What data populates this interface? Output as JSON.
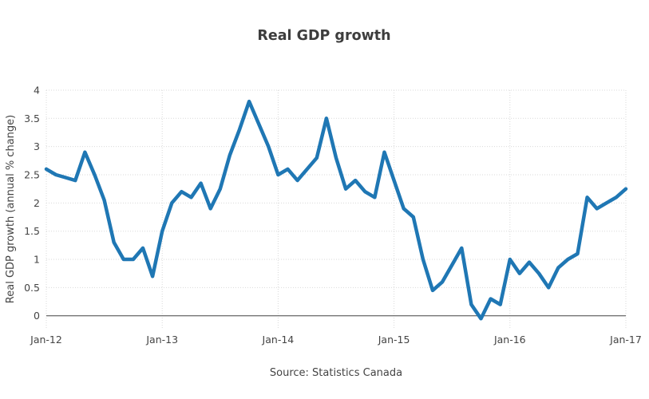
{
  "title": "Real GDP growth",
  "source": "Source: Statistics Canada",
  "colors": {
    "accent": "#1f77b4",
    "grid": "#d9d9d9",
    "zero_line": "#444444",
    "text": "#444444",
    "title_text": "#3d3d3d",
    "background": "#ffffff"
  },
  "chart_data": {
    "type": "line",
    "title": "Real GDP growth",
    "ylabel": "Real GDP growth (annual % change)",
    "xlabel": "",
    "x": [
      "Jan-12",
      "Feb-12",
      "Mar-12",
      "Apr-12",
      "May-12",
      "Jun-12",
      "Jul-12",
      "Aug-12",
      "Sep-12",
      "Oct-12",
      "Nov-12",
      "Dec-12",
      "Jan-13",
      "Feb-13",
      "Mar-13",
      "Apr-13",
      "May-13",
      "Jun-13",
      "Jul-13",
      "Aug-13",
      "Sep-13",
      "Oct-13",
      "Nov-13",
      "Dec-13",
      "Jan-14",
      "Feb-14",
      "Mar-14",
      "Apr-14",
      "May-14",
      "Jun-14",
      "Jul-14",
      "Aug-14",
      "Sep-14",
      "Oct-14",
      "Nov-14",
      "Dec-14",
      "Jan-15",
      "Feb-15",
      "Mar-15",
      "Apr-15",
      "May-15",
      "Jun-15",
      "Jul-15",
      "Aug-15",
      "Sep-15",
      "Oct-15",
      "Nov-15",
      "Dec-15",
      "Jan-16",
      "Feb-16",
      "Mar-16",
      "Apr-16",
      "May-16",
      "Jun-16",
      "Jul-16",
      "Aug-16",
      "Sep-16",
      "Oct-16",
      "Nov-16",
      "Dec-16",
      "Jan-17"
    ],
    "values": [
      2.6,
      2.5,
      2.45,
      2.4,
      2.9,
      2.5,
      2.05,
      1.3,
      1.0,
      1.0,
      1.2,
      0.7,
      1.5,
      2.0,
      2.2,
      2.1,
      2.35,
      1.9,
      2.25,
      2.85,
      3.3,
      3.8,
      3.4,
      3.0,
      2.5,
      2.6,
      2.4,
      2.6,
      2.8,
      3.5,
      2.8,
      2.25,
      2.4,
      2.2,
      2.1,
      2.9,
      2.4,
      1.9,
      1.75,
      1.0,
      0.45,
      0.6,
      0.9,
      1.2,
      0.2,
      -0.05,
      0.3,
      0.2,
      1.0,
      0.75,
      0.95,
      0.75,
      0.5,
      0.85,
      1.0,
      1.1,
      2.1,
      1.9,
      2.0,
      2.1,
      2.25
    ],
    "x_tick_indices": [
      0,
      12,
      24,
      36,
      48,
      60
    ],
    "x_tick_labels": [
      "Jan-12",
      "Jan-13",
      "Jan-14",
      "Jan-15",
      "Jan-16",
      "Jan-17"
    ],
    "yticks": [
      0,
      0.5,
      1,
      1.5,
      2,
      2.5,
      3,
      3.5,
      4
    ],
    "ylim": [
      -0.23,
      4.07
    ],
    "grid": true,
    "legend": false,
    "line_color": "#1f77b4",
    "line_width": 4.5
  }
}
